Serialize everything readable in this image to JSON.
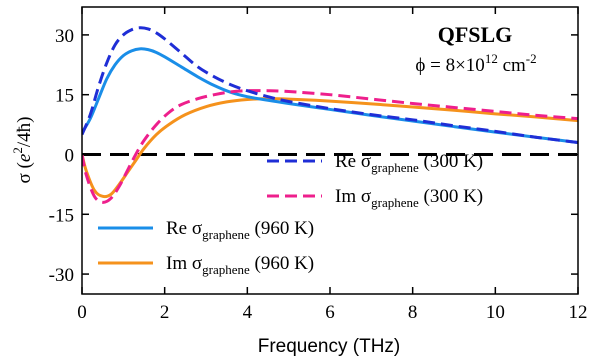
{
  "chart_data": {
    "type": "line",
    "xlabel": "Frequency (THz)",
    "ylabel": {
      "main": "σ (",
      "e": "e",
      "sup": "2",
      "rest": "/4ħ)"
    },
    "xlim": [
      0,
      12
    ],
    "ylim": [
      -35,
      37
    ],
    "xticks": [
      0,
      2,
      4,
      6,
      8,
      10,
      12
    ],
    "yticks": [
      30,
      15,
      0,
      -15,
      -30
    ],
    "grid": false,
    "zero_line": {
      "y": 0,
      "style": "dashed",
      "color": "#000000"
    },
    "annotations": {
      "title": "QFSLG",
      "density": {
        "pre": "ϕ = 8×10",
        "sup": "12",
        "post": " cm",
        "sup2": "-2"
      }
    },
    "legend": [
      {
        "series": "re_300",
        "main": "Re σ",
        "sub": "graphene",
        "tail": " (300 K)"
      },
      {
        "series": "im_300",
        "main": "Im σ",
        "sub": "graphene",
        "tail": " (300 K)"
      },
      {
        "series": "re_960",
        "main": "Re σ",
        "sub": "graphene",
        "tail": " (960 K)"
      },
      {
        "series": "im_960",
        "main": "Im σ",
        "sub": "graphene",
        "tail": " (960 K)"
      }
    ],
    "series": [
      {
        "id": "re_300",
        "color": "#1f2ed6",
        "dash": "dashed",
        "x": [
          0.0,
          0.2,
          0.4,
          0.6,
          0.8,
          1.0,
          1.2,
          1.4,
          1.6,
          1.8,
          2.0,
          2.4,
          2.8,
          3.2,
          3.6,
          4.0,
          4.5,
          5.0,
          6.0,
          7.0,
          8.0,
          9.0,
          10.0,
          11.0,
          12.0
        ],
        "y": [
          5,
          10,
          17,
          23,
          27.5,
          30,
          31.3,
          31.8,
          31.5,
          30.5,
          29,
          25.5,
          22,
          19.5,
          17.5,
          16,
          14.5,
          13.3,
          11.5,
          10,
          8.7,
          7.2,
          5.8,
          4.3,
          3
        ]
      },
      {
        "id": "im_300",
        "color": "#ee1f8c",
        "dash": "dashed",
        "x": [
          0.0,
          0.1,
          0.3,
          0.5,
          0.7,
          0.9,
          1.1,
          1.3,
          1.5,
          1.8,
          2.1,
          2.4,
          2.8,
          3.2,
          3.6,
          4.0,
          4.5,
          5.0,
          6.0,
          7.0,
          8.0,
          9.0,
          10.0,
          11.0,
          12.0
        ],
        "y": [
          0,
          -5,
          -10.5,
          -12,
          -11,
          -8,
          -4,
          0,
          3.5,
          7.5,
          10.5,
          12.5,
          14,
          15,
          15.7,
          16,
          16,
          15.8,
          15,
          13.9,
          12.8,
          11.8,
          10.8,
          9.8,
          9
        ]
      },
      {
        "id": "re_960",
        "color": "#1a8ee8",
        "dash": "solid",
        "x": [
          0.0,
          0.2,
          0.4,
          0.6,
          0.8,
          1.0,
          1.2,
          1.4,
          1.6,
          1.8,
          2.0,
          2.4,
          2.8,
          3.2,
          3.6,
          4.0,
          4.5,
          5.0,
          6.0,
          7.0,
          8.0,
          9.0,
          10.0,
          11.0,
          12.0
        ],
        "y": [
          5.5,
          9,
          14,
          19,
          22.5,
          24.8,
          26,
          26.5,
          26.3,
          25.6,
          24.5,
          22,
          19.5,
          17.3,
          15.6,
          14.5,
          13.6,
          12.8,
          11.3,
          9.8,
          8.4,
          7,
          5.6,
          4.3,
          3
        ]
      },
      {
        "id": "im_960",
        "color": "#f5921c",
        "dash": "solid",
        "x": [
          0.0,
          0.1,
          0.3,
          0.5,
          0.7,
          0.9,
          1.1,
          1.3,
          1.5,
          1.8,
          2.1,
          2.5,
          3.0,
          3.5,
          4.0,
          4.5,
          5.0,
          6.0,
          7.0,
          8.0,
          9.0,
          10.0,
          11.0,
          12.0
        ],
        "y": [
          0,
          -4,
          -9,
          -10.5,
          -10,
          -7.5,
          -4.5,
          -1.5,
          1.5,
          5,
          7.5,
          10,
          12,
          13.2,
          13.8,
          14,
          13.9,
          13.4,
          12.7,
          11.9,
          11.1,
          10.2,
          9.4,
          8.5
        ]
      }
    ]
  }
}
